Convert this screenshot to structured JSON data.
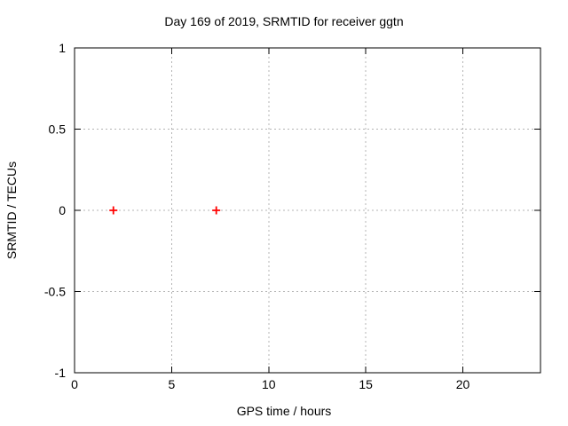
{
  "title": "Day 169 of 2019, SRMTID for receiver ggtn",
  "chart_data": {
    "type": "scatter",
    "title": "Day 169 of 2019, SRMTID for receiver ggtn",
    "xlabel": "GPS time / hours",
    "ylabel": "SRMTID / TECUs",
    "xlim": [
      0,
      24
    ],
    "ylim": [
      -1,
      1
    ],
    "xticks": [
      0,
      5,
      10,
      15,
      20
    ],
    "yticks": [
      -1,
      -0.5,
      0,
      0.5,
      1
    ],
    "grid": true,
    "grid_style": "dotted",
    "legend": false,
    "series": [
      {
        "name": "SRMTID",
        "marker": "plus",
        "color": "#ff0000",
        "points": [
          [
            2.0,
            0.0
          ],
          [
            7.3,
            0.0
          ]
        ]
      }
    ]
  },
  "colors": {
    "background": "#ffffff",
    "axis": "#000000",
    "grid": "#b4b4b4",
    "marker": "#ff0000",
    "text": "#000000"
  }
}
